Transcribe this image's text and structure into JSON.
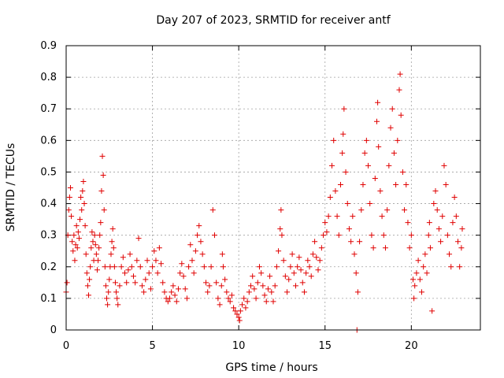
{
  "chart_data": {
    "type": "scatter",
    "title": "Day 207 of 2023, SRMTID for receiver antf",
    "xlabel": "GPS time / hours",
    "ylabel": "SRMTID / TECUs",
    "xlim": [
      0,
      24
    ],
    "ylim": [
      0,
      0.9
    ],
    "x_ticks": [
      0,
      5,
      10,
      15,
      20
    ],
    "x_tick_labels": [
      "0",
      "5",
      "10",
      "15",
      "20"
    ],
    "y_ticks": [
      0,
      0.1,
      0.2,
      0.3,
      0.4,
      0.5,
      0.6,
      0.7,
      0.8,
      0.9
    ],
    "y_tick_labels": [
      "0",
      "0.1",
      "0.2",
      "0.3",
      "0.4",
      "0.5",
      "0.6",
      "0.7",
      "0.8",
      "0.9"
    ],
    "grid": true,
    "marker": "+",
    "color": "#e00000",
    "series": [
      {
        "name": "SRMTID",
        "points": [
          [
            0.0,
            0.12
          ],
          [
            0.05,
            0.15
          ],
          [
            0.1,
            0.3
          ],
          [
            0.15,
            0.38
          ],
          [
            0.2,
            0.42
          ],
          [
            0.25,
            0.45
          ],
          [
            0.3,
            0.36
          ],
          [
            0.35,
            0.28
          ],
          [
            0.4,
            0.25
          ],
          [
            0.45,
            0.3
          ],
          [
            0.5,
            0.22
          ],
          [
            0.55,
            0.27
          ],
          [
            0.6,
            0.33
          ],
          [
            0.65,
            0.26
          ],
          [
            0.7,
            0.31
          ],
          [
            0.75,
            0.29
          ],
          [
            0.8,
            0.35
          ],
          [
            0.85,
            0.42
          ],
          [
            0.9,
            0.38
          ],
          [
            0.95,
            0.44
          ],
          [
            1.0,
            0.47
          ],
          [
            1.05,
            0.4
          ],
          [
            1.1,
            0.33
          ],
          [
            1.15,
            0.24
          ],
          [
            1.2,
            0.18
          ],
          [
            1.25,
            0.14
          ],
          [
            1.3,
            0.11
          ],
          [
            1.35,
            0.16
          ],
          [
            1.4,
            0.2
          ],
          [
            1.45,
            0.26
          ],
          [
            1.5,
            0.31
          ],
          [
            1.55,
            0.28
          ],
          [
            1.6,
            0.22
          ],
          [
            1.65,
            0.3
          ],
          [
            1.7,
            0.27
          ],
          [
            1.75,
            0.24
          ],
          [
            1.8,
            0.19
          ],
          [
            1.85,
            0.22
          ],
          [
            1.9,
            0.26
          ],
          [
            1.95,
            0.3
          ],
          [
            2.0,
            0.34
          ],
          [
            2.05,
            0.44
          ],
          [
            2.1,
            0.55
          ],
          [
            2.15,
            0.49
          ],
          [
            2.2,
            0.38
          ],
          [
            2.25,
            0.2
          ],
          [
            2.3,
            0.14
          ],
          [
            2.35,
            0.1
          ],
          [
            2.4,
            0.08
          ],
          [
            2.45,
            0.12
          ],
          [
            2.5,
            0.16
          ],
          [
            2.55,
            0.2
          ],
          [
            2.6,
            0.24
          ],
          [
            2.65,
            0.28
          ],
          [
            2.7,
            0.32
          ],
          [
            2.75,
            0.26
          ],
          [
            2.8,
            0.2
          ],
          [
            2.85,
            0.15
          ],
          [
            2.9,
            0.12
          ],
          [
            2.95,
            0.1
          ],
          [
            3.0,
            0.08
          ],
          [
            3.1,
            0.14
          ],
          [
            3.2,
            0.2
          ],
          [
            3.3,
            0.23
          ],
          [
            3.4,
            0.18
          ],
          [
            3.5,
            0.15
          ],
          [
            3.6,
            0.19
          ],
          [
            3.7,
            0.24
          ],
          [
            3.8,
            0.2
          ],
          [
            3.9,
            0.17
          ],
          [
            4.0,
            0.15
          ],
          [
            4.1,
            0.22
          ],
          [
            4.2,
            0.29
          ],
          [
            4.3,
            0.2
          ],
          [
            4.4,
            0.14
          ],
          [
            4.5,
            0.12
          ],
          [
            4.6,
            0.16
          ],
          [
            4.7,
            0.22
          ],
          [
            4.8,
            0.18
          ],
          [
            4.9,
            0.13
          ],
          [
            5.0,
            0.2
          ],
          [
            5.1,
            0.25
          ],
          [
            5.2,
            0.22
          ],
          [
            5.3,
            0.18
          ],
          [
            5.4,
            0.26
          ],
          [
            5.5,
            0.21
          ],
          [
            5.6,
            0.15
          ],
          [
            5.7,
            0.12
          ],
          [
            5.8,
            0.1
          ],
          [
            5.9,
            0.09
          ],
          [
            6.0,
            0.1
          ],
          [
            6.1,
            0.12
          ],
          [
            6.2,
            0.14
          ],
          [
            6.3,
            0.11
          ],
          [
            6.4,
            0.09
          ],
          [
            6.5,
            0.13
          ],
          [
            6.6,
            0.18
          ],
          [
            6.7,
            0.21
          ],
          [
            6.8,
            0.17
          ],
          [
            6.9,
            0.13
          ],
          [
            7.0,
            0.1
          ],
          [
            7.1,
            0.2
          ],
          [
            7.2,
            0.27
          ],
          [
            7.3,
            0.22
          ],
          [
            7.4,
            0.18
          ],
          [
            7.5,
            0.25
          ],
          [
            7.6,
            0.3
          ],
          [
            7.7,
            0.33
          ],
          [
            7.8,
            0.28
          ],
          [
            7.9,
            0.24
          ],
          [
            8.0,
            0.2
          ],
          [
            8.1,
            0.15
          ],
          [
            8.2,
            0.12
          ],
          [
            8.3,
            0.14
          ],
          [
            8.4,
            0.2
          ],
          [
            8.5,
            0.38
          ],
          [
            8.6,
            0.3
          ],
          [
            8.7,
            0.15
          ],
          [
            8.8,
            0.1
          ],
          [
            8.9,
            0.08
          ],
          [
            9.0,
            0.14
          ],
          [
            9.05,
            0.24
          ],
          [
            9.1,
            0.2
          ],
          [
            9.2,
            0.16
          ],
          [
            9.3,
            0.12
          ],
          [
            9.4,
            0.1
          ],
          [
            9.5,
            0.09
          ],
          [
            9.6,
            0.11
          ],
          [
            9.7,
            0.07
          ],
          [
            9.8,
            0.06
          ],
          [
            9.9,
            0.05
          ],
          [
            10.0,
            0.04
          ],
          [
            10.05,
            0.03
          ],
          [
            10.1,
            0.06
          ],
          [
            10.2,
            0.08
          ],
          [
            10.3,
            0.1
          ],
          [
            10.4,
            0.07
          ],
          [
            10.5,
            0.09
          ],
          [
            10.6,
            0.12
          ],
          [
            10.7,
            0.14
          ],
          [
            10.8,
            0.17
          ],
          [
            10.9,
            0.13
          ],
          [
            11.0,
            0.1
          ],
          [
            11.1,
            0.15
          ],
          [
            11.2,
            0.2
          ],
          [
            11.3,
            0.18
          ],
          [
            11.4,
            0.14
          ],
          [
            11.5,
            0.11
          ],
          [
            11.6,
            0.09
          ],
          [
            11.7,
            0.13
          ],
          [
            11.8,
            0.17
          ],
          [
            11.9,
            0.12
          ],
          [
            12.0,
            0.09
          ],
          [
            12.1,
            0.14
          ],
          [
            12.2,
            0.2
          ],
          [
            12.3,
            0.25
          ],
          [
            12.4,
            0.32
          ],
          [
            12.45,
            0.38
          ],
          [
            12.5,
            0.3
          ],
          [
            12.6,
            0.22
          ],
          [
            12.7,
            0.17
          ],
          [
            12.8,
            0.12
          ],
          [
            12.9,
            0.16
          ],
          [
            13.0,
            0.2
          ],
          [
            13.1,
            0.24
          ],
          [
            13.2,
            0.18
          ],
          [
            13.3,
            0.14
          ],
          [
            13.4,
            0.2
          ],
          [
            13.5,
            0.23
          ],
          [
            13.6,
            0.19
          ],
          [
            13.7,
            0.15
          ],
          [
            13.8,
            0.12
          ],
          [
            13.9,
            0.18
          ],
          [
            14.0,
            0.22
          ],
          [
            14.1,
            0.2
          ],
          [
            14.2,
            0.17
          ],
          [
            14.3,
            0.24
          ],
          [
            14.4,
            0.28
          ],
          [
            14.5,
            0.23
          ],
          [
            14.6,
            0.19
          ],
          [
            14.7,
            0.22
          ],
          [
            14.8,
            0.26
          ],
          [
            14.9,
            0.3
          ],
          [
            15.0,
            0.34
          ],
          [
            15.1,
            0.31
          ],
          [
            15.2,
            0.36
          ],
          [
            15.3,
            0.42
          ],
          [
            15.4,
            0.52
          ],
          [
            15.5,
            0.6
          ],
          [
            15.6,
            0.44
          ],
          [
            15.7,
            0.36
          ],
          [
            15.8,
            0.3
          ],
          [
            15.9,
            0.46
          ],
          [
            16.0,
            0.56
          ],
          [
            16.05,
            0.62
          ],
          [
            16.1,
            0.7
          ],
          [
            16.2,
            0.5
          ],
          [
            16.3,
            0.4
          ],
          [
            16.4,
            0.32
          ],
          [
            16.5,
            0.28
          ],
          [
            16.6,
            0.36
          ],
          [
            16.7,
            0.24
          ],
          [
            16.8,
            0.18
          ],
          [
            16.85,
            0.0
          ],
          [
            16.9,
            0.12
          ],
          [
            17.0,
            0.28
          ],
          [
            17.1,
            0.38
          ],
          [
            17.2,
            0.46
          ],
          [
            17.3,
            0.56
          ],
          [
            17.4,
            0.6
          ],
          [
            17.5,
            0.52
          ],
          [
            17.6,
            0.4
          ],
          [
            17.7,
            0.3
          ],
          [
            17.8,
            0.26
          ],
          [
            17.9,
            0.48
          ],
          [
            18.0,
            0.66
          ],
          [
            18.05,
            0.72
          ],
          [
            18.1,
            0.58
          ],
          [
            18.2,
            0.44
          ],
          [
            18.3,
            0.36
          ],
          [
            18.4,
            0.3
          ],
          [
            18.5,
            0.26
          ],
          [
            18.6,
            0.38
          ],
          [
            18.7,
            0.52
          ],
          [
            18.8,
            0.64
          ],
          [
            18.9,
            0.7
          ],
          [
            19.0,
            0.56
          ],
          [
            19.1,
            0.46
          ],
          [
            19.2,
            0.6
          ],
          [
            19.3,
            0.76
          ],
          [
            19.35,
            0.81
          ],
          [
            19.4,
            0.68
          ],
          [
            19.5,
            0.5
          ],
          [
            19.6,
            0.38
          ],
          [
            19.7,
            0.46
          ],
          [
            19.8,
            0.34
          ],
          [
            19.9,
            0.26
          ],
          [
            20.0,
            0.3
          ],
          [
            20.1,
            0.16
          ],
          [
            20.15,
            0.1
          ],
          [
            20.2,
            0.14
          ],
          [
            20.3,
            0.18
          ],
          [
            20.4,
            0.22
          ],
          [
            20.5,
            0.16
          ],
          [
            20.6,
            0.12
          ],
          [
            20.7,
            0.2
          ],
          [
            20.8,
            0.24
          ],
          [
            20.9,
            0.18
          ],
          [
            21.0,
            0.3
          ],
          [
            21.05,
            0.34
          ],
          [
            21.1,
            0.26
          ],
          [
            21.2,
            0.06
          ],
          [
            21.3,
            0.4
          ],
          [
            21.4,
            0.44
          ],
          [
            21.5,
            0.38
          ],
          [
            21.6,
            0.32
          ],
          [
            21.7,
            0.28
          ],
          [
            21.8,
            0.36
          ],
          [
            21.9,
            0.52
          ],
          [
            22.0,
            0.46
          ],
          [
            22.1,
            0.3
          ],
          [
            22.2,
            0.24
          ],
          [
            22.3,
            0.2
          ],
          [
            22.4,
            0.34
          ],
          [
            22.5,
            0.42
          ],
          [
            22.6,
            0.36
          ],
          [
            22.7,
            0.28
          ],
          [
            22.8,
            0.2
          ],
          [
            22.9,
            0.26
          ],
          [
            22.95,
            0.32
          ]
        ]
      }
    ]
  }
}
